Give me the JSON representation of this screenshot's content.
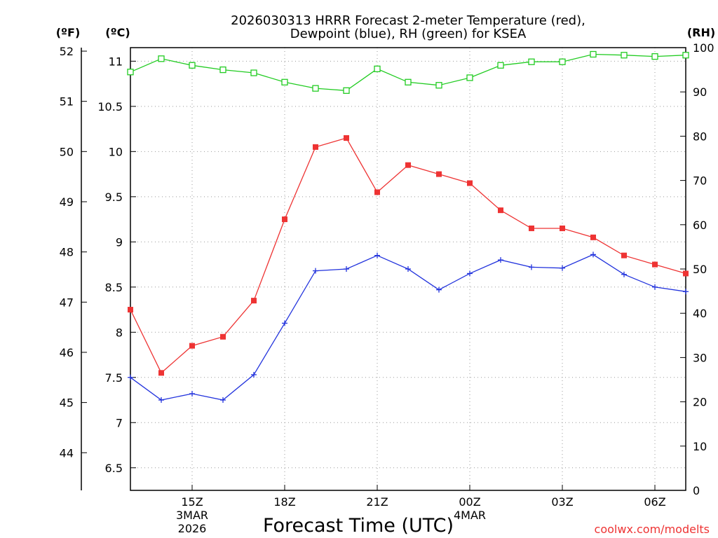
{
  "title_line1": "2026030313 HRRR Forecast 2-meter Temperature (red),",
  "title_line2": "Dewpoint (blue), RH (green) for KSEA",
  "unit_f": "(ºF)",
  "unit_c": "(ºC)",
  "unit_rh": "(RH)",
  "xlabel": "Forecast Time (UTC)",
  "watermark": "coolwx.com/modelts",
  "colors": {
    "temp": "#ee3333",
    "dew": "#2233dd",
    "rh": "#22cc22",
    "grid": "#999999"
  },
  "chart_data": {
    "type": "line",
    "x_hours": [
      13,
      14,
      15,
      16,
      17,
      18,
      19,
      20,
      21,
      22,
      23,
      24,
      25,
      26,
      27,
      28,
      29,
      30,
      31
    ],
    "xlim_hours": [
      13,
      31
    ],
    "ylim_c": [
      6.25,
      11.15
    ],
    "ylim_rh": [
      0,
      100
    ],
    "x_ticks": [
      {
        "hour": 15,
        "label": "15Z",
        "sub1": "3MAR",
        "sub2": "2026"
      },
      {
        "hour": 18,
        "label": "18Z"
      },
      {
        "hour": 21,
        "label": "21Z"
      },
      {
        "hour": 24,
        "label": "00Z",
        "sub1": "4MAR"
      },
      {
        "hour": 27,
        "label": "03Z"
      },
      {
        "hour": 30,
        "label": "06Z"
      }
    ],
    "y_ticks_c": [
      "6.5",
      "7",
      "7.5",
      "8",
      "8.5",
      "9",
      "9.5",
      "10",
      "10.5",
      "11"
    ],
    "y_ticks_f": [
      "44",
      "45",
      "46",
      "47",
      "48",
      "49",
      "50",
      "51",
      "52"
    ],
    "y_ticks_rh": [
      "0",
      "10",
      "20",
      "30",
      "40",
      "50",
      "60",
      "70",
      "80",
      "90",
      "100"
    ],
    "series": [
      {
        "name": "Temperature",
        "unit": "C",
        "color": "#ee3333",
        "marker": "filled-square",
        "values": [
          8.25,
          7.55,
          7.85,
          7.95,
          8.35,
          9.25,
          10.05,
          10.15,
          9.55,
          9.85,
          9.75,
          9.65,
          9.35,
          9.15,
          9.15,
          9.05,
          8.85,
          8.75,
          8.65
        ]
      },
      {
        "name": "Dewpoint",
        "unit": "C",
        "color": "#2233dd",
        "marker": "plus",
        "values": [
          7.5,
          7.25,
          7.32,
          7.25,
          7.53,
          8.1,
          8.68,
          8.7,
          8.85,
          8.7,
          8.47,
          8.65,
          8.8,
          8.72,
          8.71,
          8.86,
          8.64,
          8.5,
          8.45
        ]
      },
      {
        "name": "RH",
        "unit": "%",
        "color": "#22cc22",
        "marker": "open-square",
        "values": [
          94.5,
          97.5,
          96,
          95,
          94.3,
          92.2,
          90.8,
          90.3,
          95.2,
          92.2,
          91.5,
          93.2,
          96,
          96.8,
          96.8,
          98.5,
          98.3,
          98,
          98.3
        ]
      }
    ]
  }
}
